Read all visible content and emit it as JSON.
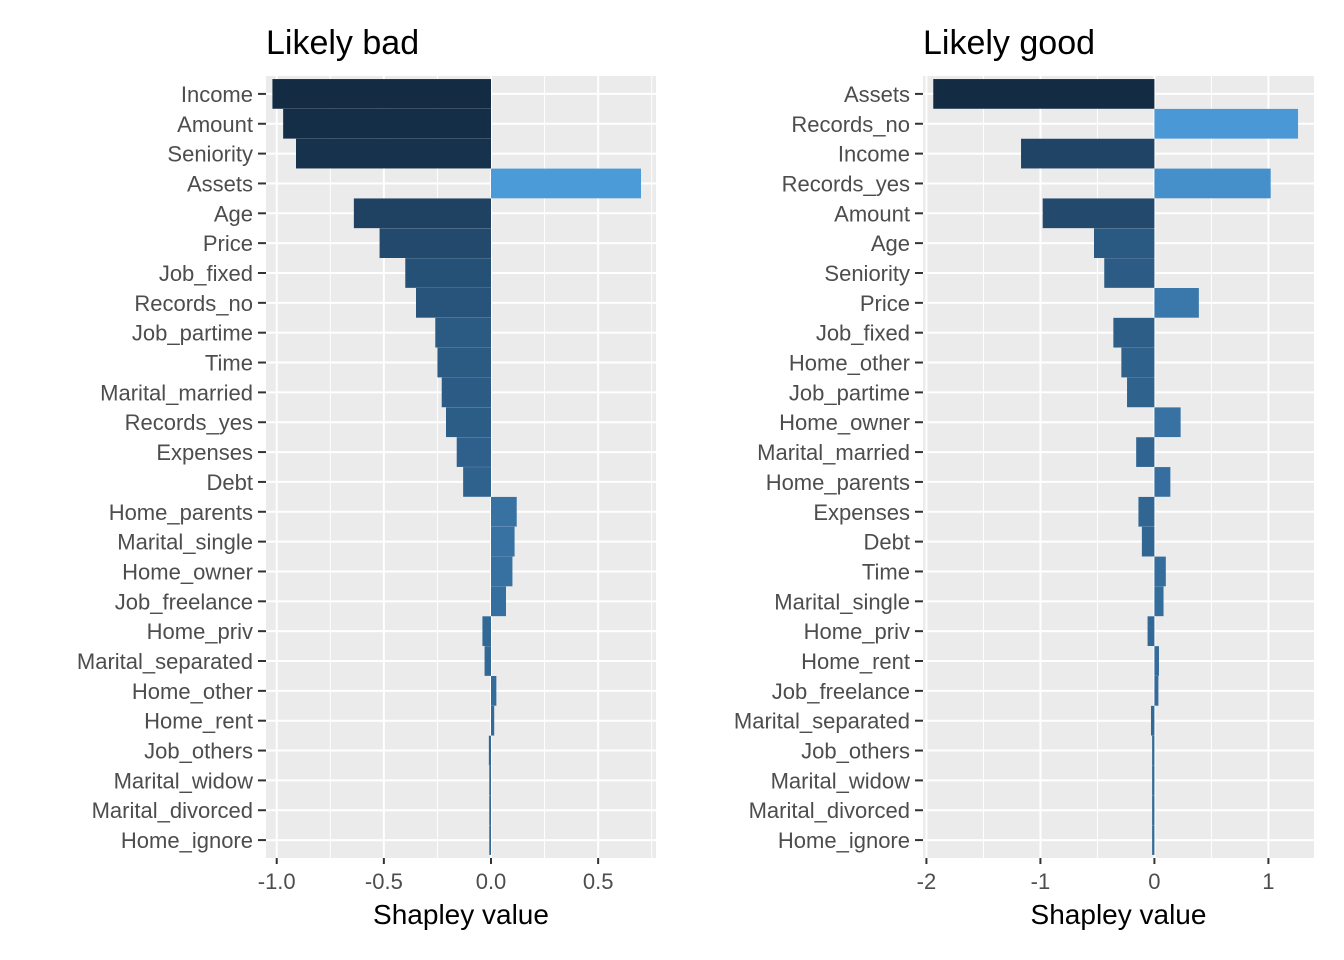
{
  "chart_data": [
    {
      "type": "bar",
      "orientation": "horizontal",
      "title": "Likely bad",
      "xlabel": "Shapley value",
      "ylabel": "",
      "xlim": [
        -1.05,
        0.77
      ],
      "xticks": [
        -1.0,
        -0.5,
        0.0,
        0.5
      ],
      "xtick_labels": [
        "-1.0",
        "-0.5",
        "0.0",
        "0.5"
      ],
      "grid": true,
      "categories": [
        "Income",
        "Amount",
        "Seniority",
        "Assets",
        "Age",
        "Price",
        "Job_fixed",
        "Records_no",
        "Job_partime",
        "Time",
        "Marital_married",
        "Records_yes",
        "Expenses",
        "Debt",
        "Home_parents",
        "Marital_single",
        "Home_owner",
        "Job_freelance",
        "Home_priv",
        "Marital_separated",
        "Home_other",
        "Home_rent",
        "Job_others",
        "Marital_widow",
        "Marital_divorced",
        "Home_ignore"
      ],
      "values": [
        -1.02,
        -0.97,
        -0.91,
        0.7,
        -0.64,
        -0.52,
        -0.4,
        -0.35,
        -0.26,
        -0.25,
        -0.23,
        -0.21,
        -0.16,
        -0.13,
        0.12,
        0.11,
        0.1,
        0.07,
        -0.04,
        -0.03,
        0.025,
        0.015,
        -0.01,
        -0.008,
        -0.008,
        -0.008
      ],
      "colors": {
        "strong_negative": "#132b43",
        "weak": "#336a98",
        "strong_positive": "#56b1f7"
      }
    },
    {
      "type": "bar",
      "orientation": "horizontal",
      "title": "Likely good",
      "xlabel": "Shapley value",
      "ylabel": "",
      "xlim": [
        -2.03,
        1.4
      ],
      "xticks": [
        -2,
        -1,
        0,
        1
      ],
      "xtick_labels": [
        "-2",
        "-1",
        "0",
        "1"
      ],
      "grid": true,
      "categories": [
        "Assets",
        "Records_no",
        "Income",
        "Records_yes",
        "Amount",
        "Age",
        "Seniority",
        "Price",
        "Job_fixed",
        "Home_other",
        "Job_partime",
        "Home_owner",
        "Marital_married",
        "Home_parents",
        "Expenses",
        "Debt",
        "Time",
        "Marital_single",
        "Home_priv",
        "Home_rent",
        "Job_freelance",
        "Marital_separated",
        "Job_others",
        "Marital_widow",
        "Marital_divorced",
        "Home_ignore"
      ],
      "values": [
        -1.94,
        1.26,
        -1.17,
        1.02,
        -0.98,
        -0.53,
        -0.44,
        0.39,
        -0.36,
        -0.29,
        -0.24,
        0.23,
        -0.16,
        0.14,
        -0.14,
        -0.11,
        0.1,
        0.08,
        -0.06,
        0.04,
        0.035,
        -0.03,
        -0.02,
        -0.02,
        -0.02,
        -0.02
      ],
      "colors": {
        "strong_negative": "#132b43",
        "weak": "#336a98",
        "strong_positive": "#56b1f7"
      }
    }
  ]
}
